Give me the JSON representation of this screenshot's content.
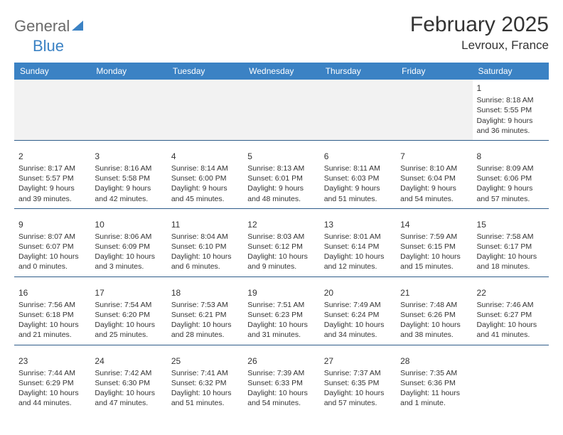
{
  "logo": {
    "general": "General",
    "blue": "Blue"
  },
  "title": "February 2025",
  "location": "Levroux, France",
  "colors": {
    "header_bg": "#3b82c4",
    "header_text": "#ffffff",
    "row_divider": "#2f5d8a",
    "lead_bg": "#f2f2f2",
    "body_text": "#333333",
    "logo_gray": "#6a6a6a",
    "logo_blue": "#3b82c4"
  },
  "weekdays": [
    "Sunday",
    "Monday",
    "Tuesday",
    "Wednesday",
    "Thursday",
    "Friday",
    "Saturday"
  ],
  "days": {
    "1": {
      "sunrise": "Sunrise: 8:18 AM",
      "sunset": "Sunset: 5:55 PM",
      "daylight": "Daylight: 9 hours and 36 minutes."
    },
    "2": {
      "sunrise": "Sunrise: 8:17 AM",
      "sunset": "Sunset: 5:57 PM",
      "daylight": "Daylight: 9 hours and 39 minutes."
    },
    "3": {
      "sunrise": "Sunrise: 8:16 AM",
      "sunset": "Sunset: 5:58 PM",
      "daylight": "Daylight: 9 hours and 42 minutes."
    },
    "4": {
      "sunrise": "Sunrise: 8:14 AM",
      "sunset": "Sunset: 6:00 PM",
      "daylight": "Daylight: 9 hours and 45 minutes."
    },
    "5": {
      "sunrise": "Sunrise: 8:13 AM",
      "sunset": "Sunset: 6:01 PM",
      "daylight": "Daylight: 9 hours and 48 minutes."
    },
    "6": {
      "sunrise": "Sunrise: 8:11 AM",
      "sunset": "Sunset: 6:03 PM",
      "daylight": "Daylight: 9 hours and 51 minutes."
    },
    "7": {
      "sunrise": "Sunrise: 8:10 AM",
      "sunset": "Sunset: 6:04 PM",
      "daylight": "Daylight: 9 hours and 54 minutes."
    },
    "8": {
      "sunrise": "Sunrise: 8:09 AM",
      "sunset": "Sunset: 6:06 PM",
      "daylight": "Daylight: 9 hours and 57 minutes."
    },
    "9": {
      "sunrise": "Sunrise: 8:07 AM",
      "sunset": "Sunset: 6:07 PM",
      "daylight": "Daylight: 10 hours and 0 minutes."
    },
    "10": {
      "sunrise": "Sunrise: 8:06 AM",
      "sunset": "Sunset: 6:09 PM",
      "daylight": "Daylight: 10 hours and 3 minutes."
    },
    "11": {
      "sunrise": "Sunrise: 8:04 AM",
      "sunset": "Sunset: 6:10 PM",
      "daylight": "Daylight: 10 hours and 6 minutes."
    },
    "12": {
      "sunrise": "Sunrise: 8:03 AM",
      "sunset": "Sunset: 6:12 PM",
      "daylight": "Daylight: 10 hours and 9 minutes."
    },
    "13": {
      "sunrise": "Sunrise: 8:01 AM",
      "sunset": "Sunset: 6:14 PM",
      "daylight": "Daylight: 10 hours and 12 minutes."
    },
    "14": {
      "sunrise": "Sunrise: 7:59 AM",
      "sunset": "Sunset: 6:15 PM",
      "daylight": "Daylight: 10 hours and 15 minutes."
    },
    "15": {
      "sunrise": "Sunrise: 7:58 AM",
      "sunset": "Sunset: 6:17 PM",
      "daylight": "Daylight: 10 hours and 18 minutes."
    },
    "16": {
      "sunrise": "Sunrise: 7:56 AM",
      "sunset": "Sunset: 6:18 PM",
      "daylight": "Daylight: 10 hours and 21 minutes."
    },
    "17": {
      "sunrise": "Sunrise: 7:54 AM",
      "sunset": "Sunset: 6:20 PM",
      "daylight": "Daylight: 10 hours and 25 minutes."
    },
    "18": {
      "sunrise": "Sunrise: 7:53 AM",
      "sunset": "Sunset: 6:21 PM",
      "daylight": "Daylight: 10 hours and 28 minutes."
    },
    "19": {
      "sunrise": "Sunrise: 7:51 AM",
      "sunset": "Sunset: 6:23 PM",
      "daylight": "Daylight: 10 hours and 31 minutes."
    },
    "20": {
      "sunrise": "Sunrise: 7:49 AM",
      "sunset": "Sunset: 6:24 PM",
      "daylight": "Daylight: 10 hours and 34 minutes."
    },
    "21": {
      "sunrise": "Sunrise: 7:48 AM",
      "sunset": "Sunset: 6:26 PM",
      "daylight": "Daylight: 10 hours and 38 minutes."
    },
    "22": {
      "sunrise": "Sunrise: 7:46 AM",
      "sunset": "Sunset: 6:27 PM",
      "daylight": "Daylight: 10 hours and 41 minutes."
    },
    "23": {
      "sunrise": "Sunrise: 7:44 AM",
      "sunset": "Sunset: 6:29 PM",
      "daylight": "Daylight: 10 hours and 44 minutes."
    },
    "24": {
      "sunrise": "Sunrise: 7:42 AM",
      "sunset": "Sunset: 6:30 PM",
      "daylight": "Daylight: 10 hours and 47 minutes."
    },
    "25": {
      "sunrise": "Sunrise: 7:41 AM",
      "sunset": "Sunset: 6:32 PM",
      "daylight": "Daylight: 10 hours and 51 minutes."
    },
    "26": {
      "sunrise": "Sunrise: 7:39 AM",
      "sunset": "Sunset: 6:33 PM",
      "daylight": "Daylight: 10 hours and 54 minutes."
    },
    "27": {
      "sunrise": "Sunrise: 7:37 AM",
      "sunset": "Sunset: 6:35 PM",
      "daylight": "Daylight: 10 hours and 57 minutes."
    },
    "28": {
      "sunrise": "Sunrise: 7:35 AM",
      "sunset": "Sunset: 6:36 PM",
      "daylight": "Daylight: 11 hours and 1 minute."
    }
  },
  "layout": {
    "lead_blank_cells": 6,
    "weeks": [
      [
        null,
        null,
        null,
        null,
        null,
        null,
        "1"
      ],
      [
        "2",
        "3",
        "4",
        "5",
        "6",
        "7",
        "8"
      ],
      [
        "9",
        "10",
        "11",
        "12",
        "13",
        "14",
        "15"
      ],
      [
        "16",
        "17",
        "18",
        "19",
        "20",
        "21",
        "22"
      ],
      [
        "23",
        "24",
        "25",
        "26",
        "27",
        "28",
        null
      ]
    ]
  }
}
